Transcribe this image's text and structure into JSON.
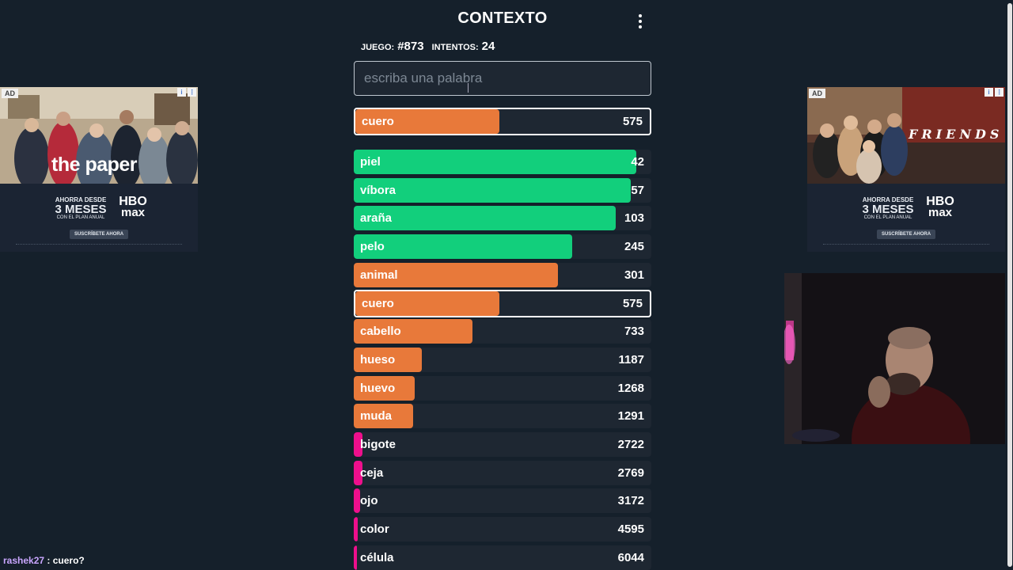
{
  "app": {
    "title": "CONTEXTO"
  },
  "game_info": {
    "game_label": "JUEGO:",
    "game_value": "#873",
    "attempts_label": "INTENTOS:",
    "attempts_value": "24"
  },
  "search": {
    "placeholder": "escriba una palabra"
  },
  "last_guess": {
    "word": "cuero",
    "distance": "575",
    "fill": 0.49,
    "color": "#e8793a"
  },
  "guesses": [
    {
      "word": "piel",
      "distance": "42",
      "fill": 0.95,
      "color": "#12cf7c"
    },
    {
      "word": "víbora",
      "distance": "57",
      "fill": 0.93,
      "color": "#12cf7c"
    },
    {
      "word": "araña",
      "distance": "103",
      "fill": 0.88,
      "color": "#12cf7c"
    },
    {
      "word": "pelo",
      "distance": "245",
      "fill": 0.735,
      "color": "#12cf7c"
    },
    {
      "word": "animal",
      "distance": "301",
      "fill": 0.685,
      "color": "#e8793a"
    },
    {
      "word": "cuero",
      "distance": "575",
      "fill": 0.49,
      "color": "#e8793a",
      "selected": true
    },
    {
      "word": "cabello",
      "distance": "733",
      "fill": 0.4,
      "color": "#e8793a"
    },
    {
      "word": "hueso",
      "distance": "1187",
      "fill": 0.23,
      "color": "#e8793a"
    },
    {
      "word": "huevo",
      "distance": "1268",
      "fill": 0.205,
      "color": "#e8793a"
    },
    {
      "word": "muda",
      "distance": "1291",
      "fill": 0.2,
      "color": "#e8793a"
    },
    {
      "word": "bigote",
      "distance": "2722",
      "fill": 0.03,
      "color": "#ee0f8c"
    },
    {
      "word": "ceja",
      "distance": "2769",
      "fill": 0.028,
      "color": "#ee0f8c"
    },
    {
      "word": "ojo",
      "distance": "3172",
      "fill": 0.02,
      "color": "#ee0f8c"
    },
    {
      "word": "color",
      "distance": "4595",
      "fill": 0.012,
      "color": "#ee0f8c"
    },
    {
      "word": "célula",
      "distance": "6044",
      "fill": 0.008,
      "color": "#ee0f8c"
    }
  ],
  "ad_left": {
    "badge": "AD",
    "title": "the paper",
    "promo_line1": "AHORRA DESDE",
    "promo_line2": "3 MESES",
    "promo_line3": "CON EL PLAN ANUAL",
    "logo_line1": "HBO",
    "logo_line2": "max",
    "cta": "SUSCRÍBETE AHORA"
  },
  "ad_right": {
    "badge": "AD",
    "title": "FRIENDS",
    "promo_line1": "AHORRA DESDE",
    "promo_line2": "3 MESES",
    "promo_line3": "CON EL PLAN ANUAL",
    "logo_line1": "HBO",
    "logo_line2": "max",
    "cta": "SUSCRÍBETE AHORA"
  },
  "chat": {
    "user": "rashek27",
    "message": ": cuero?"
  }
}
